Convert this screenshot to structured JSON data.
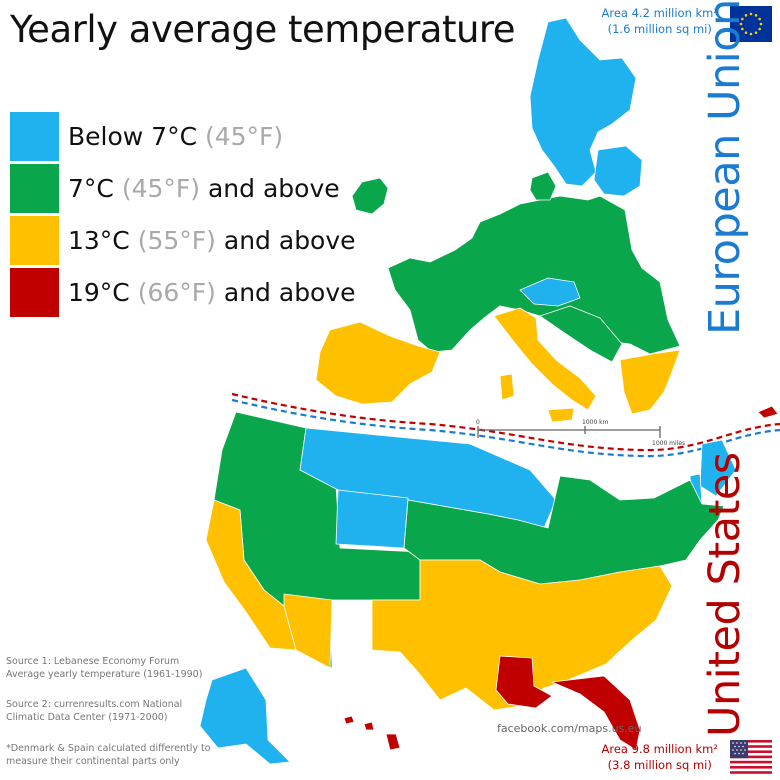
{
  "title": "Yearly average temperature",
  "legend": [
    {
      "color": "#1fb2ee",
      "celsius": "Below 7°C",
      "fahrenheit": "(45°F)",
      "suffix": ""
    },
    {
      "color": "#0aa64b",
      "celsius": "7°C",
      "fahrenheit": "(45°F)",
      "suffix": "and above"
    },
    {
      "color": "#ffc000",
      "celsius": "13°C",
      "fahrenheit": "(55°F)",
      "suffix": "and above"
    },
    {
      "color": "#c00000",
      "celsius": "19°C",
      "fahrenheit": "(66°F)",
      "suffix": "and above"
    }
  ],
  "eu": {
    "label": "European Union",
    "area_line1": "Area 4.2 million km²",
    "area_line2": "(1.6 million sq mi)",
    "flag_icon": "eu-flag-icon",
    "color": "#1b7bd1"
  },
  "us": {
    "label": "United States",
    "area_line1": "Area 9.8 million km²",
    "area_line2": "(3.8 million sq mi)",
    "flag_icon": "us-flag-icon",
    "color": "#b40000"
  },
  "scale": {
    "zero": "0",
    "km": "1000 km",
    "miles": "1000 miles"
  },
  "sources": {
    "source1": "Source 1: Lebanese Economy Forum Average yearly temperature (1961-1990)",
    "source2": "Source 2: currenresults.com  National Climatic Data Center (1971-2000)",
    "note": "*Denmark & Spain calculated differently to measure their continental parts only"
  },
  "credit": "facebook.com/maps.us.eu"
}
